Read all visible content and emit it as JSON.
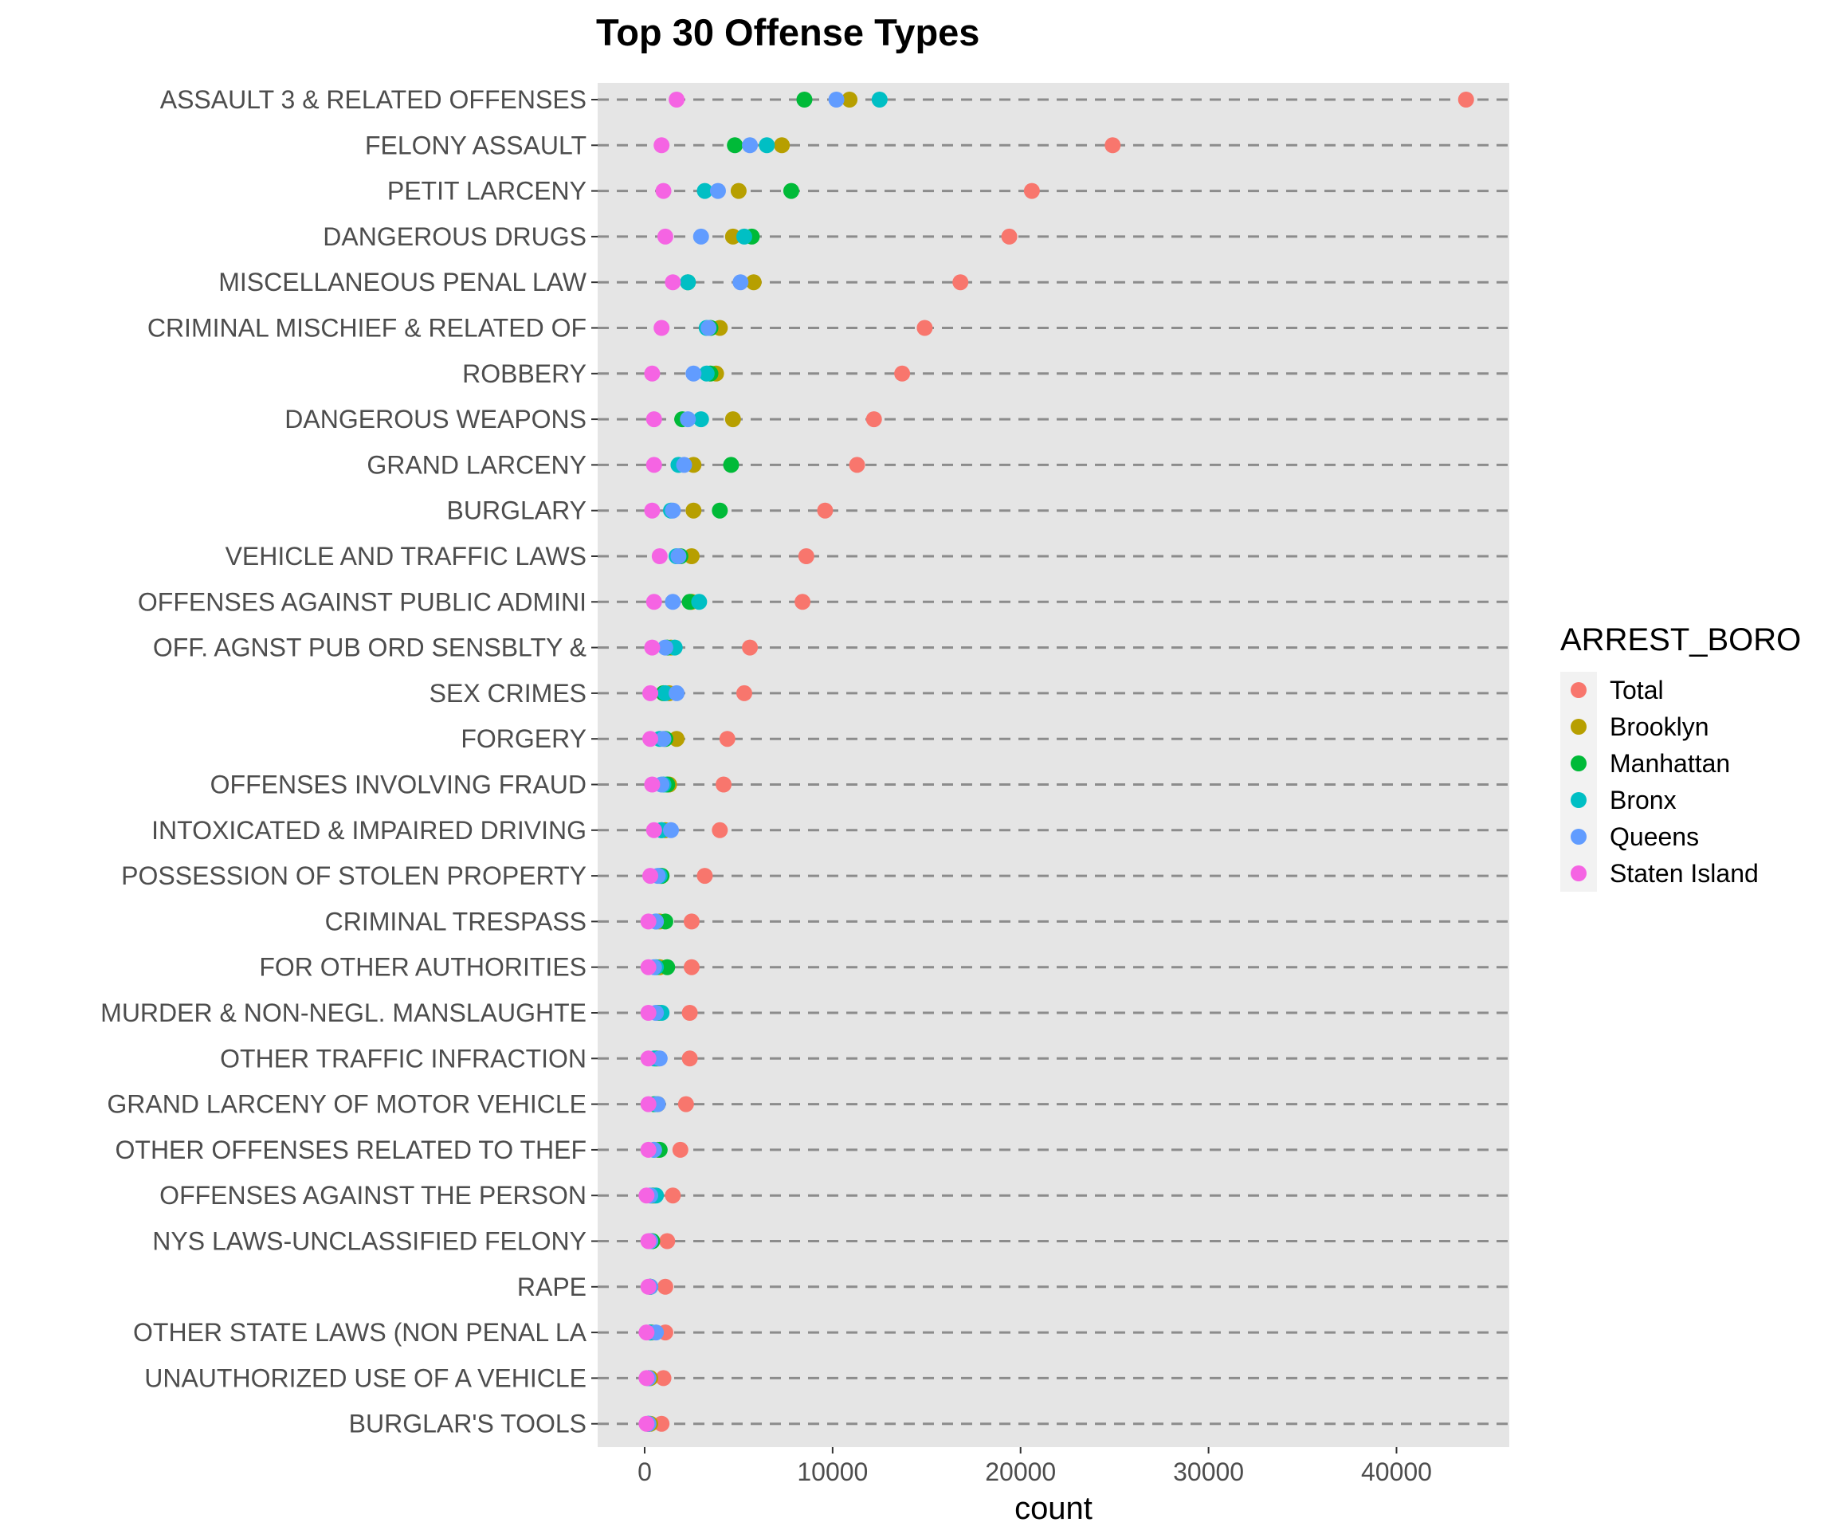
{
  "chart_data": {
    "type": "scatter",
    "title": "Top 30 Offense Types",
    "xlabel": "count",
    "ylabel": "",
    "xlim": [
      -2500,
      46000
    ],
    "x_ticks": [
      0,
      10000,
      20000,
      30000,
      40000
    ],
    "x_tick_labels": [
      "0",
      "10000",
      "20000",
      "30000",
      "40000"
    ],
    "grid": true,
    "gridline_style": "dashed",
    "legend_title": "ARREST_BORO",
    "legend_position": "right",
    "panel_background": "#e5e5e5",
    "categories": [
      "ASSAULT 3 & RELATED OFFENSES",
      "FELONY ASSAULT",
      "PETIT LARCENY",
      "DANGEROUS DRUGS",
      "MISCELLANEOUS PENAL LAW",
      "CRIMINAL MISCHIEF & RELATED OF",
      "ROBBERY",
      "DANGEROUS WEAPONS",
      "GRAND LARCENY",
      "BURGLARY",
      "VEHICLE AND TRAFFIC LAWS",
      "OFFENSES AGAINST PUBLIC ADMINI",
      "OFF. AGNST PUB ORD SENSBLTY &",
      "SEX CRIMES",
      "FORGERY",
      "OFFENSES INVOLVING FRAUD",
      "INTOXICATED & IMPAIRED DRIVING",
      "POSSESSION OF STOLEN PROPERTY",
      "CRIMINAL TRESPASS",
      "FOR OTHER AUTHORITIES",
      "MURDER & NON-NEGL. MANSLAUGHTE",
      "OTHER TRAFFIC INFRACTION",
      "GRAND LARCENY OF MOTOR VEHICLE",
      "OTHER OFFENSES RELATED TO THEF",
      "OFFENSES AGAINST THE PERSON",
      "NYS LAWS-UNCLASSIFIED FELONY",
      "RAPE",
      "OTHER STATE LAWS (NON PENAL LA",
      "UNAUTHORIZED USE OF A VEHICLE",
      "BURGLAR'S TOOLS"
    ],
    "series": [
      {
        "name": "Total",
        "color": "#F8766D",
        "values": [
          43700,
          24900,
          20600,
          19400,
          16800,
          14900,
          13700,
          12200,
          11300,
          9600,
          8600,
          8400,
          5600,
          5300,
          4400,
          4200,
          4000,
          3200,
          2500,
          2500,
          2400,
          2400,
          2200,
          1900,
          1500,
          1200,
          1100,
          1100,
          1000,
          900
        ]
      },
      {
        "name": "Brooklyn",
        "color": "#B79F00",
        "values": [
          10900,
          7300,
          5000,
          4700,
          5800,
          4000,
          3800,
          4700,
          2600,
          2600,
          2500,
          2500,
          1400,
          1300,
          1700,
          1300,
          1100,
          900,
          800,
          800,
          800,
          700,
          700,
          700,
          500,
          400,
          300,
          400,
          300,
          300
        ]
      },
      {
        "name": "Manhattan",
        "color": "#00BA38",
        "values": [
          8500,
          4800,
          7800,
          5700,
          2300,
          3500,
          3500,
          2000,
          4600,
          4000,
          1900,
          2400,
          1200,
          1000,
          1100,
          1200,
          900,
          900,
          1100,
          1200,
          700,
          600,
          500,
          800,
          400,
          400,
          300,
          300,
          200,
          200
        ]
      },
      {
        "name": "Bronx",
        "color": "#00BFC4",
        "values": [
          12500,
          6500,
          3200,
          5300,
          2300,
          3300,
          3300,
          3000,
          1800,
          1400,
          1700,
          2900,
          1600,
          1100,
          800,
          1000,
          900,
          800,
          600,
          600,
          900,
          500,
          600,
          500,
          600,
          300,
          300,
          300,
          200,
          200
        ]
      },
      {
        "name": "Queens",
        "color": "#619CFF",
        "values": [
          10200,
          5600,
          3900,
          3000,
          5100,
          3400,
          2600,
          2300,
          2100,
          1500,
          1800,
          1500,
          1100,
          1700,
          1000,
          900,
          1400,
          700,
          600,
          500,
          600,
          800,
          700,
          500,
          300,
          300,
          300,
          600,
          200,
          200
        ]
      },
      {
        "name": "Staten Island",
        "color": "#F564E3",
        "values": [
          1700,
          900,
          1000,
          1100,
          1500,
          900,
          400,
          500,
          500,
          400,
          800,
          500,
          400,
          300,
          300,
          400,
          500,
          300,
          200,
          200,
          200,
          200,
          200,
          200,
          100,
          200,
          200,
          100,
          100,
          100
        ]
      }
    ]
  }
}
